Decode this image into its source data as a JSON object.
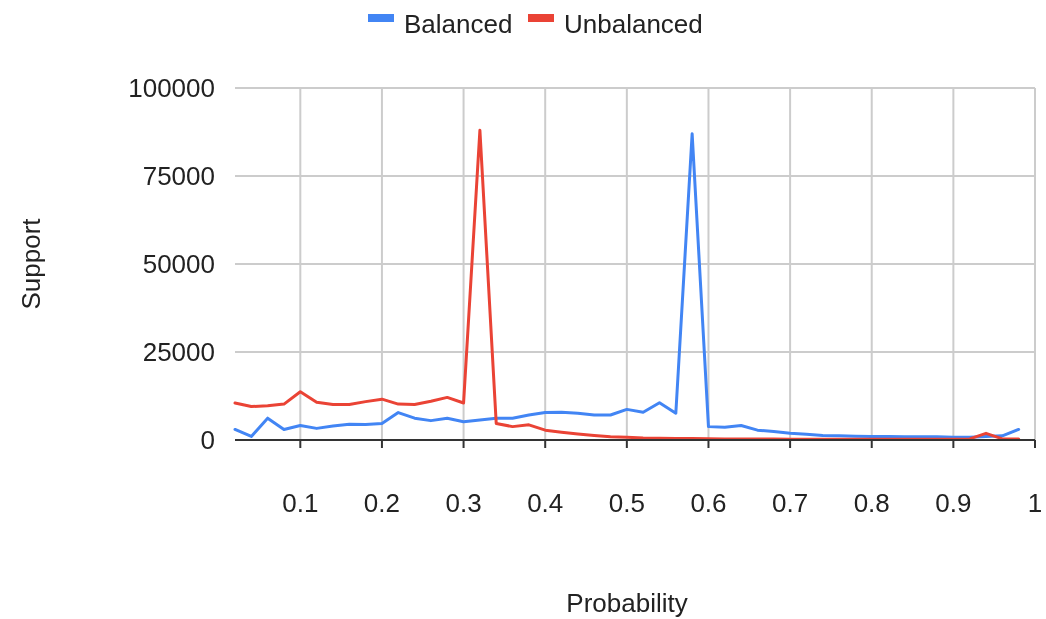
{
  "chart_data": {
    "type": "line",
    "xlabel": "Probability",
    "ylabel": "Support",
    "x": [
      0.02,
      0.04,
      0.06,
      0.08,
      0.1,
      0.12,
      0.14,
      0.16,
      0.18,
      0.2,
      0.22,
      0.24,
      0.26,
      0.28,
      0.3,
      0.32,
      0.34,
      0.36,
      0.38,
      0.4,
      0.42,
      0.44,
      0.46,
      0.48,
      0.5,
      0.52,
      0.54,
      0.56,
      0.58,
      0.6,
      0.62,
      0.64,
      0.66,
      0.68,
      0.7,
      0.72,
      0.74,
      0.76,
      0.78,
      0.8,
      0.82,
      0.84,
      0.86,
      0.88,
      0.9,
      0.92,
      0.94,
      0.96,
      0.98
    ],
    "series": [
      {
        "name": "Balanced",
        "color": "#4285f4",
        "values": [
          3000,
          1000,
          6200,
          3000,
          4100,
          3300,
          4000,
          4500,
          4400,
          4700,
          7800,
          6200,
          5500,
          6200,
          5200,
          5700,
          6200,
          6200,
          7100,
          7800,
          7900,
          7600,
          7100,
          7100,
          8700,
          7900,
          10600,
          7600,
          87000,
          3800,
          3600,
          4100,
          2800,
          2400,
          1900,
          1600,
          1300,
          1200,
          1100,
          1000,
          1000,
          900,
          900,
          900,
          800,
          800,
          1000,
          1200,
          3000
        ]
      },
      {
        "name": "Unbalanced",
        "color": "#ea4335",
        "values": [
          10500,
          9500,
          9700,
          10200,
          13700,
          10700,
          10100,
          10100,
          10900,
          11600,
          10200,
          10100,
          11000,
          12100,
          10500,
          88000,
          4700,
          3800,
          4300,
          2800,
          2200,
          1700,
          1300,
          950,
          750,
          570,
          500,
          450,
          400,
          350,
          300,
          300,
          250,
          250,
          200,
          200,
          200,
          200,
          200,
          200,
          200,
          200,
          200,
          200,
          200,
          300,
          1900,
          300,
          300
        ]
      }
    ],
    "xlim": [
      0.02,
      1
    ],
    "xticks": [
      {
        "value": 0.1,
        "label": "0.1"
      },
      {
        "value": 0.2,
        "label": "0.2"
      },
      {
        "value": 0.3,
        "label": "0.3"
      },
      {
        "value": 0.4,
        "label": "0.4"
      },
      {
        "value": 0.5,
        "label": "0.5"
      },
      {
        "value": 0.6,
        "label": "0.6"
      },
      {
        "value": 0.7,
        "label": "0.7"
      },
      {
        "value": 0.8,
        "label": "0.8"
      },
      {
        "value": 0.9,
        "label": "0.9"
      },
      1
    ],
    "ylim": [
      0,
      100000
    ],
    "yticks": [
      0,
      25000,
      50000,
      75000,
      100000
    ],
    "grid": true,
    "legend": "top"
  }
}
